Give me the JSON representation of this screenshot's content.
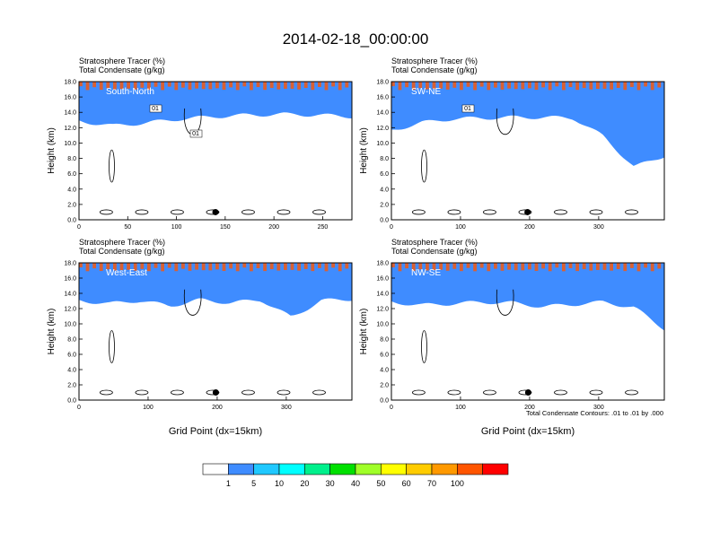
{
  "figure": {
    "title": "2014-02-18_00:00:00",
    "field_line_1": "Stratosphere Tracer   (%)",
    "field_line_2": "Total Condensate   (g/kg)",
    "y_axis_label": "Height (km)",
    "x_axis_label": "Grid Point (dx=15km)",
    "contour_note": "Total Condensate Contours: .01 to .01 by .000"
  },
  "colorbar": {
    "colors": [
      "#ffffff",
      "#3f8cff",
      "#20c8ff",
      "#00ffff",
      "#00f08c",
      "#00e000",
      "#a0ff28",
      "#ffff00",
      "#ffcc00",
      "#ff9900",
      "#ff5500",
      "#ff0000"
    ],
    "labels": [
      "1",
      "5",
      "10",
      "20",
      "30",
      "40",
      "50",
      "60",
      "70",
      "100"
    ]
  },
  "chart_data": [
    {
      "type": "heatmap",
      "section": "South-North",
      "xlim": [
        0,
        280
      ],
      "ylim": [
        0,
        18
      ],
      "xticks": [
        "0",
        "50",
        "100",
        "150",
        "200",
        "250"
      ],
      "yticks": [
        "0.0",
        "2.0",
        "4.0",
        "6.0",
        "8.0",
        "10.0",
        "12.0",
        "14.0",
        "16.0",
        "18.0"
      ],
      "tropopause_km": [
        15.0,
        14.4,
        14.8,
        15.3,
        15.6,
        15.8,
        15.9,
        15.8,
        15.6
      ],
      "contour_labels": [
        "01",
        "01"
      ],
      "marker": {
        "x": 140,
        "y": 1.0
      }
    },
    {
      "type": "heatmap",
      "section": "SW-NE",
      "xlim": [
        0,
        395
      ],
      "ylim": [
        0,
        18
      ],
      "xticks": [
        "0",
        "100",
        "200",
        "300"
      ],
      "yticks": [
        "0.0",
        "2.0",
        "4.0",
        "6.0",
        "8.0",
        "10.0",
        "12.0",
        "14.0",
        "16.0",
        "18.0"
      ],
      "tropopause_km": [
        13.8,
        14.8,
        15.3,
        15.4,
        15.5,
        15.5,
        15.4,
        13.0,
        9.0,
        10.5
      ],
      "contour_labels": [
        "01"
      ],
      "marker": {
        "x": 197,
        "y": 1.0
      }
    },
    {
      "type": "heatmap",
      "section": "West-East",
      "xlim": [
        0,
        395
      ],
      "ylim": [
        0,
        18
      ],
      "xticks": [
        "0",
        "100",
        "200",
        "300"
      ],
      "yticks": [
        "0.0",
        "2.0",
        "4.0",
        "6.0",
        "8.0",
        "10.0",
        "12.0",
        "14.0",
        "16.0",
        "18.0"
      ],
      "tropopause_km": [
        15.2,
        14.8,
        15.2,
        14.5,
        15.3,
        14.9,
        15.3,
        13.0,
        15.2,
        15.4
      ],
      "contour_labels": [],
      "marker": {
        "x": 198,
        "y": 1.0
      }
    },
    {
      "type": "heatmap",
      "section": "NW-SE",
      "xlim": [
        0,
        395
      ],
      "ylim": [
        0,
        18
      ],
      "xticks": [
        "0",
        "100",
        "200",
        "300"
      ],
      "yticks": [
        "0.0",
        "2.0",
        "4.0",
        "6.0",
        "8.0",
        "10.0",
        "12.0",
        "14.0",
        "16.0",
        "18.0"
      ],
      "tropopause_km": [
        15.0,
        14.6,
        14.8,
        15.0,
        14.9,
        14.4,
        14.7,
        15.0,
        14.3,
        11.5
      ],
      "contour_labels": [],
      "marker": {
        "x": 198,
        "y": 1.0
      }
    }
  ]
}
